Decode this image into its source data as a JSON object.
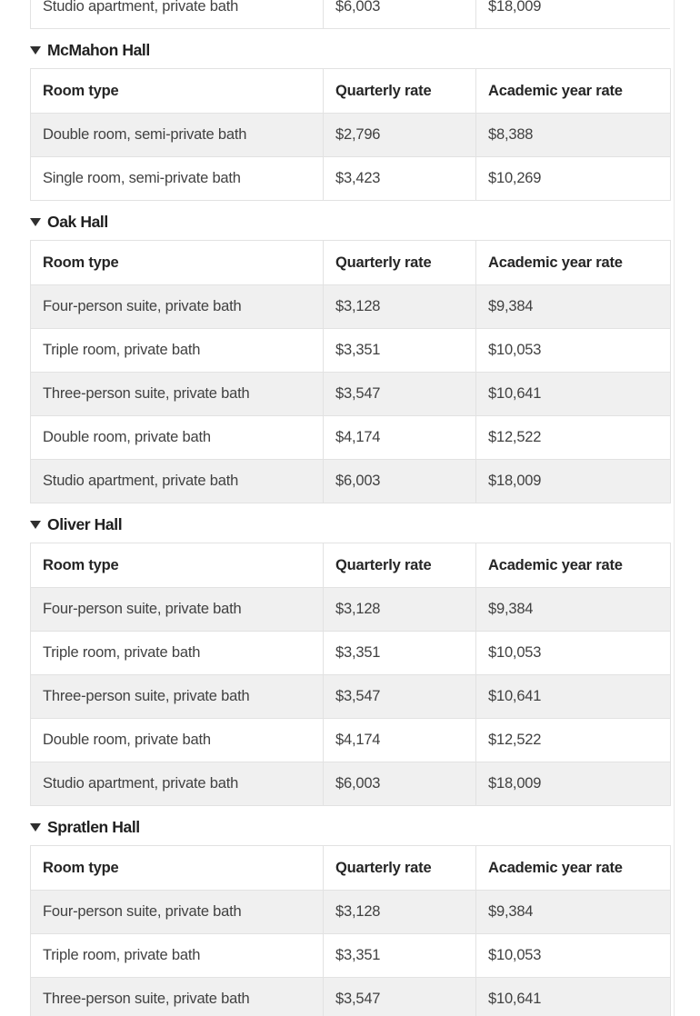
{
  "colors": {
    "row_stripe": "#f0f0f0",
    "table_border": "#e2e2e2",
    "header_text": "#252525",
    "cell_text": "#414141",
    "heading_text": "#202020",
    "triangle": "#2f2f2f",
    "right_rule": "#e9e9e9"
  },
  "columns": [
    "Room type",
    "Quarterly rate",
    "Academic year rate"
  ],
  "top_partial_row": {
    "cells": [
      "Studio apartment, private bath",
      "$6,003",
      "$18,009"
    ]
  },
  "sections": [
    {
      "name": "McMahon Hall",
      "state": "expanded",
      "rows": [
        [
          "Double room, semi-private bath",
          "$2,796",
          "$8,388"
        ],
        [
          "Single room, semi-private bath",
          "$3,423",
          "$10,269"
        ]
      ]
    },
    {
      "name": "Oak Hall",
      "state": "expanded",
      "rows": [
        [
          "Four-person suite, private bath",
          "$3,128",
          "$9,384"
        ],
        [
          "Triple room, private bath",
          "$3,351",
          "$10,053"
        ],
        [
          "Three-person suite, private bath",
          "$3,547",
          "$10,641"
        ],
        [
          "Double room, private bath",
          "$4,174",
          "$12,522"
        ],
        [
          "Studio apartment, private bath",
          "$6,003",
          "$18,009"
        ]
      ]
    },
    {
      "name": "Oliver Hall",
      "state": "expanded",
      "rows": [
        [
          "Four-person suite, private bath",
          "$3,128",
          "$9,384"
        ],
        [
          "Triple room, private bath",
          "$3,351",
          "$10,053"
        ],
        [
          "Three-person suite, private bath",
          "$3,547",
          "$10,641"
        ],
        [
          "Double room, private bath",
          "$4,174",
          "$12,522"
        ],
        [
          "Studio apartment, private bath",
          "$6,003",
          "$18,009"
        ]
      ]
    },
    {
      "name": "Spratlen Hall",
      "state": "expanded",
      "rows": [
        [
          "Four-person suite, private bath",
          "$3,128",
          "$9,384"
        ],
        [
          "Triple room, private bath",
          "$3,351",
          "$10,053"
        ],
        [
          "Three-person suite, private bath",
          "$3,547",
          "$10,641"
        ]
      ]
    }
  ]
}
